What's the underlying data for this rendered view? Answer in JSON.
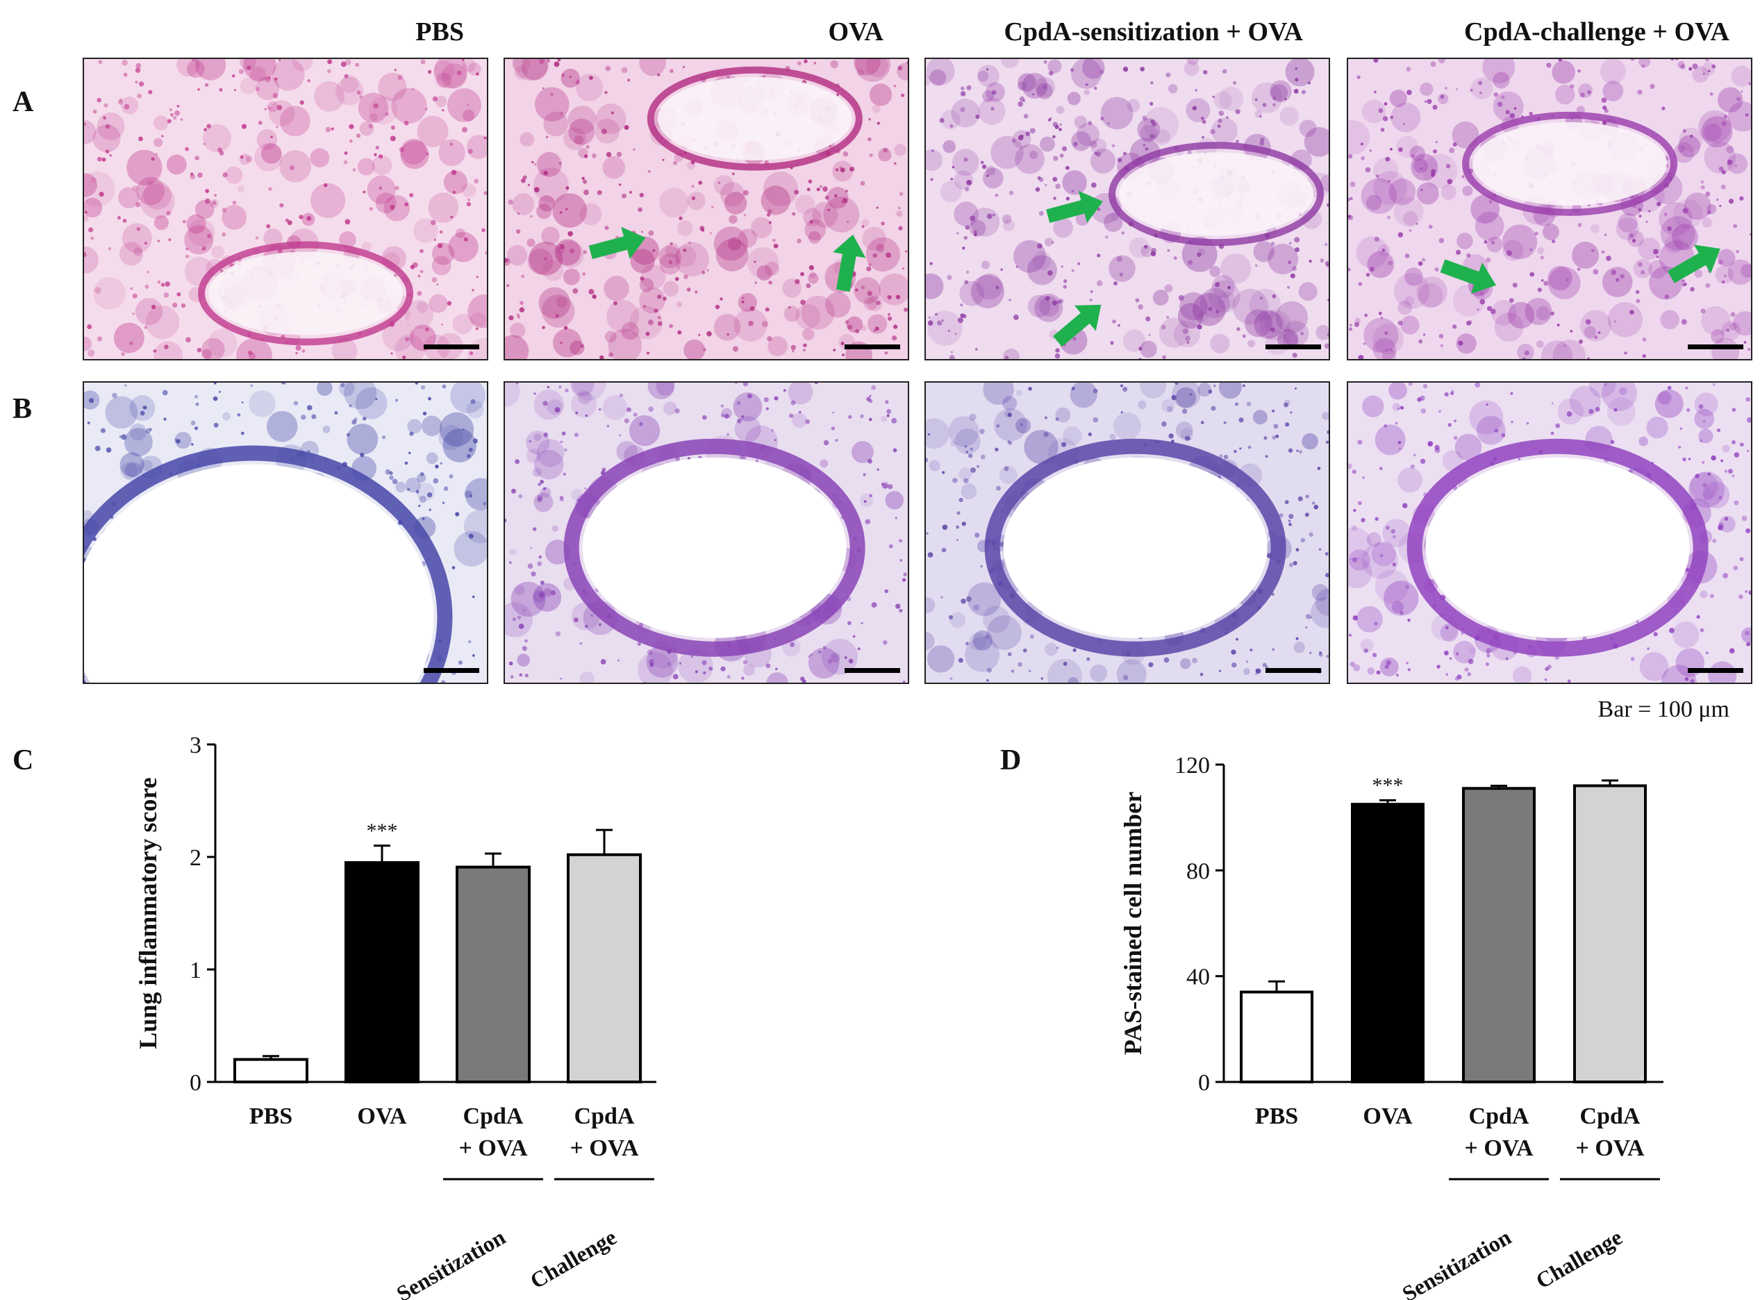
{
  "figure": {
    "panel_letters": [
      "A",
      "B",
      "C",
      "D"
    ],
    "column_titles": [
      "PBS",
      "OVA",
      "CpdA-sensitization + OVA",
      "CpdA-challenge + OVA"
    ],
    "scale_bar_text": "Bar = 100 μm",
    "significance_mark": "***",
    "micrographs": [
      {
        "row": "A",
        "col": 0,
        "stain": "H&E",
        "base": "#f5dcec",
        "tissue": "#c03a8e",
        "arrows": 0
      },
      {
        "row": "A",
        "col": 1,
        "stain": "H&E",
        "base": "#f2d3e7",
        "tissue": "#b12c82",
        "arrows": 2
      },
      {
        "row": "A",
        "col": 2,
        "stain": "H&E",
        "base": "#efdcef",
        "tissue": "#8e3aa3",
        "arrows": 2
      },
      {
        "row": "A",
        "col": 3,
        "stain": "H&E",
        "base": "#efd8ee",
        "tissue": "#9a3cab",
        "arrows": 2
      },
      {
        "row": "B",
        "col": 0,
        "stain": "PAS",
        "base": "#eaeaf6",
        "tissue": "#4648a8",
        "arrows": 0
      },
      {
        "row": "B",
        "col": 1,
        "stain": "PAS",
        "base": "#e9def0",
        "tissue": "#8a44b6",
        "arrows": 0
      },
      {
        "row": "B",
        "col": 2,
        "stain": "PAS",
        "base": "#e2dcf0",
        "tissue": "#5a47a8",
        "arrows": 0
      },
      {
        "row": "B",
        "col": 3,
        "stain": "PAS",
        "base": "#ecdff2",
        "tissue": "#9244c0",
        "arrows": 0
      }
    ],
    "arrow_color": "#1fb14d"
  },
  "chart_data": [
    {
      "type": "bar",
      "panel": "C",
      "ylabel": "Lung inflammatory score",
      "ylim": [
        0,
        3
      ],
      "yticks": [
        0,
        1,
        2,
        3
      ],
      "categories": [
        "PBS",
        "OVA",
        "CpdA + OVA",
        "CpdA + OVA"
      ],
      "category_lines": [
        [
          "PBS"
        ],
        [
          "OVA"
        ],
        [
          "CpdA",
          "+ OVA"
        ],
        [
          "CpdA",
          "+ OVA"
        ]
      ],
      "values": [
        0.2,
        1.95,
        1.91,
        2.02
      ],
      "errors": [
        0.03,
        0.15,
        0.12,
        0.22
      ],
      "colors": [
        "#ffffff",
        "#000000",
        "#7a7a7a",
        "#d3d3d3"
      ],
      "significance": [
        null,
        "***",
        null,
        null
      ],
      "group_labels": [
        {
          "text": "Sensitization",
          "index": 2
        },
        {
          "text": "Challenge",
          "index": 3
        }
      ]
    },
    {
      "type": "bar",
      "panel": "D",
      "ylabel": "PAS-stained cell number",
      "ylim": [
        0,
        120
      ],
      "yticks": [
        0,
        40,
        80,
        120
      ],
      "categories": [
        "PBS",
        "OVA",
        "CpdA + OVA",
        "CpdA + OVA"
      ],
      "category_lines": [
        [
          "PBS"
        ],
        [
          "OVA"
        ],
        [
          "CpdA",
          "+ OVA"
        ],
        [
          "CpdA",
          "+ OVA"
        ]
      ],
      "values": [
        34,
        105,
        111,
        112
      ],
      "errors": [
        4,
        1.5,
        1,
        2
      ],
      "colors": [
        "#ffffff",
        "#000000",
        "#7a7a7a",
        "#d3d3d3"
      ],
      "significance": [
        null,
        "***",
        null,
        null
      ],
      "group_labels": [
        {
          "text": "Sensitization",
          "index": 2
        },
        {
          "text": "Challenge",
          "index": 3
        }
      ]
    }
  ]
}
